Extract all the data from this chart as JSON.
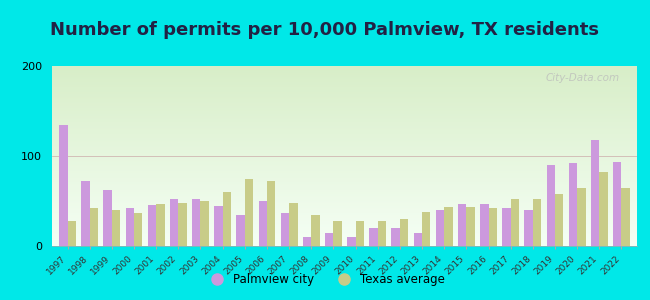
{
  "title": "Number of permits per 10,000 Palmview, TX residents",
  "years": [
    1997,
    1998,
    1999,
    2000,
    2001,
    2002,
    2003,
    2004,
    2005,
    2006,
    2007,
    2008,
    2009,
    2010,
    2011,
    2012,
    2013,
    2014,
    2015,
    2016,
    2017,
    2018,
    2019,
    2020,
    2021,
    2022
  ],
  "palmview": [
    135,
    72,
    62,
    42,
    46,
    52,
    52,
    45,
    35,
    50,
    37,
    10,
    15,
    10,
    20,
    20,
    15,
    40,
    47,
    47,
    42,
    40,
    90,
    92,
    118,
    93
  ],
  "texas": [
    28,
    42,
    40,
    37,
    47,
    48,
    50,
    60,
    75,
    72,
    48,
    35,
    28,
    28,
    28,
    30,
    38,
    43,
    43,
    42,
    52,
    52,
    58,
    65,
    82,
    65
  ],
  "palmview_color": "#cc99dd",
  "texas_color": "#c8cc88",
  "background_outer": "#00e8e8",
  "ylim": [
    0,
    200
  ],
  "yticks": [
    0,
    100,
    200
  ],
  "title_fontsize": 13,
  "legend_palmview": "Palmview city",
  "legend_texas": "Texas average",
  "watermark": "City-Data.com"
}
